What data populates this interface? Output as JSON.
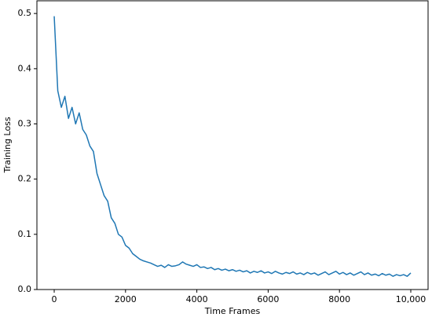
{
  "chart_data": {
    "type": "line",
    "x_label": "Time Frames",
    "y_label": "Training Loss",
    "x": [
      0,
      100,
      200,
      300,
      400,
      500,
      600,
      700,
      800,
      900,
      1000,
      1100,
      1200,
      1300,
      1400,
      1500,
      1600,
      1700,
      1800,
      1900,
      2000,
      2100,
      2200,
      2300,
      2400,
      2500,
      2600,
      2700,
      2800,
      2900,
      3000,
      3100,
      3200,
      3300,
      3400,
      3500,
      3600,
      3700,
      3800,
      3900,
      4000,
      4100,
      4200,
      4300,
      4400,
      4500,
      4600,
      4700,
      4800,
      4900,
      5000,
      5100,
      5200,
      5300,
      5400,
      5500,
      5600,
      5700,
      5800,
      5900,
      6000,
      6100,
      6200,
      6300,
      6400,
      6500,
      6600,
      6700,
      6800,
      6900,
      7000,
      7100,
      7200,
      7300,
      7400,
      7500,
      7600,
      7700,
      7800,
      7900,
      8000,
      8100,
      8200,
      8300,
      8400,
      8500,
      8600,
      8700,
      8800,
      8900,
      9000,
      9100,
      9200,
      9300,
      9400,
      9500,
      9600,
      9700,
      9800,
      9900,
      10000
    ],
    "series": [
      {
        "color": "#1f77b4",
        "values": [
          0.495,
          0.36,
          0.33,
          0.35,
          0.31,
          0.33,
          0.3,
          0.32,
          0.29,
          0.28,
          0.26,
          0.25,
          0.21,
          0.19,
          0.17,
          0.16,
          0.13,
          0.12,
          0.1,
          0.095,
          0.08,
          0.075,
          0.065,
          0.06,
          0.055,
          0.052,
          0.05,
          0.048,
          0.045,
          0.042,
          0.044,
          0.04,
          0.045,
          0.042,
          0.043,
          0.045,
          0.05,
          0.046,
          0.044,
          0.042,
          0.045,
          0.04,
          0.041,
          0.038,
          0.04,
          0.036,
          0.038,
          0.035,
          0.037,
          0.034,
          0.036,
          0.033,
          0.035,
          0.032,
          0.034,
          0.03,
          0.033,
          0.031,
          0.034,
          0.03,
          0.032,
          0.029,
          0.033,
          0.03,
          0.028,
          0.031,
          0.029,
          0.032,
          0.028,
          0.03,
          0.027,
          0.031,
          0.028,
          0.03,
          0.026,
          0.029,
          0.032,
          0.027,
          0.03,
          0.033,
          0.028,
          0.031,
          0.027,
          0.03,
          0.026,
          0.029,
          0.032,
          0.027,
          0.03,
          0.026,
          0.028,
          0.025,
          0.029,
          0.026,
          0.028,
          0.024,
          0.027,
          0.025,
          0.027,
          0.024,
          0.03
        ]
      }
    ],
    "xlim": [
      -485,
      10485
    ],
    "ylim": [
      0,
      0.523
    ],
    "xticks": [
      0,
      2000,
      4000,
      6000,
      8000,
      {
        "value": 10000,
        "label": "10,000"
      }
    ],
    "yticks": [
      {
        "value": 0,
        "label": "0.0"
      },
      0.1,
      0.2,
      0.3,
      0.4,
      0.5
    ]
  }
}
